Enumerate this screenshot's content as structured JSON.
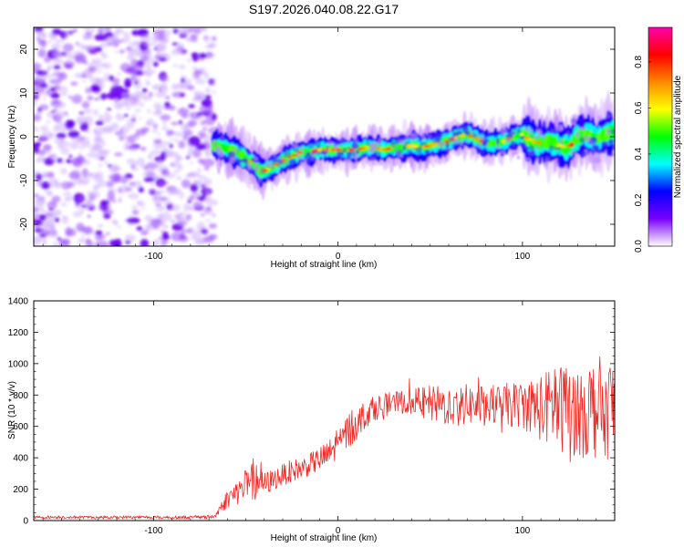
{
  "figure": {
    "title": "S197.2026.040.08.22.G17"
  },
  "chart_data": [
    {
      "type": "heatmap",
      "title": "",
      "xlabel": "Height of straight line (km)",
      "ylabel": "Frequency (Hz)",
      "xlim": [
        -165,
        150
      ],
      "ylim": [
        -25,
        25
      ],
      "x_ticks": [
        -100,
        0,
        100
      ],
      "y_ticks": [
        -20,
        -10,
        0,
        10,
        20
      ],
      "noise_region_x": [
        -165,
        -67
      ],
      "signal_start_x": -67,
      "ridge_x": [
        -67,
        -62,
        -58,
        -55,
        -50,
        -45,
        -42,
        -38,
        -34,
        -30,
        -25,
        -20,
        -15,
        -10,
        -5,
        0,
        5,
        10,
        15,
        20,
        25,
        30,
        35,
        40,
        45,
        50,
        55,
        60,
        65,
        70,
        75,
        80,
        85,
        90,
        95,
        100,
        105,
        110,
        115,
        120,
        125,
        130,
        135,
        140,
        145,
        150
      ],
      "ridge_freq": [
        -2,
        -2.5,
        -3,
        -3.5,
        -5,
        -6.5,
        -8,
        -7.5,
        -6.5,
        -5.5,
        -4.5,
        -3.5,
        -3.5,
        -3,
        -3,
        -3,
        -3,
        -3,
        -2.5,
        -2.5,
        -3,
        -2.5,
        -2.5,
        -2,
        -2.5,
        -2,
        -1.5,
        -1,
        0,
        0.5,
        -0.5,
        -1.5,
        -1.5,
        -1,
        0,
        0.5,
        -1,
        -1.5,
        -1,
        -2,
        -2.5,
        0,
        0.5,
        -0.5,
        0.5,
        1
      ],
      "colorbar": {
        "label": "Normalized spectral amplitude",
        "range": [
          0,
          0.95
        ],
        "ticks": [
          0,
          0.2,
          0.4,
          0.6,
          0.8
        ],
        "tick_labels": [
          "0.0",
          "0.2",
          "0.4",
          "0.6",
          "0.8"
        ],
        "colors": [
          "#ffffff",
          "#7a00ff",
          "#0000ff",
          "#00ffff",
          "#00ff00",
          "#ffff00",
          "#ff8800",
          "#ff0000",
          "#ff00aa"
        ]
      }
    },
    {
      "type": "line",
      "title": "",
      "xlabel": "Height of straight line (km)",
      "ylabel": "SNR (10 * v/v)",
      "xlim": [
        -165,
        150
      ],
      "ylim": [
        0,
        1400
      ],
      "x_ticks": [
        -100,
        0,
        100
      ],
      "y_ticks": [
        0,
        200,
        400,
        600,
        800,
        1000,
        1200,
        1400
      ],
      "color": "#ee2a24",
      "series": [
        {
          "name": "SNR",
          "x": [
            -165,
            -150,
            -130,
            -110,
            -90,
            -75,
            -67,
            -60,
            -55,
            -50,
            -45,
            -40,
            -35,
            -30,
            -25,
            -20,
            -15,
            -10,
            -5,
            0,
            5,
            10,
            15,
            20,
            30,
            40,
            50,
            60,
            70,
            80,
            90,
            100,
            110,
            120,
            130,
            140,
            150
          ],
          "values": [
            20,
            22,
            20,
            22,
            20,
            22,
            25,
            140,
            180,
            220,
            250,
            230,
            260,
            290,
            320,
            330,
            360,
            390,
            420,
            500,
            560,
            620,
            680,
            720,
            750,
            760,
            740,
            730,
            740,
            730,
            735,
            740,
            720,
            720,
            700,
            720,
            720
          ],
          "noise_amplitude": [
            10,
            10,
            10,
            10,
            10,
            10,
            15,
            60,
            80,
            110,
            120,
            80,
            70,
            70,
            70,
            70,
            70,
            80,
            90,
            120,
            120,
            110,
            90,
            80,
            70,
            80,
            120,
            130,
            130,
            130,
            140,
            150,
            220,
            280,
            300,
            330,
            330
          ]
        }
      ]
    }
  ]
}
